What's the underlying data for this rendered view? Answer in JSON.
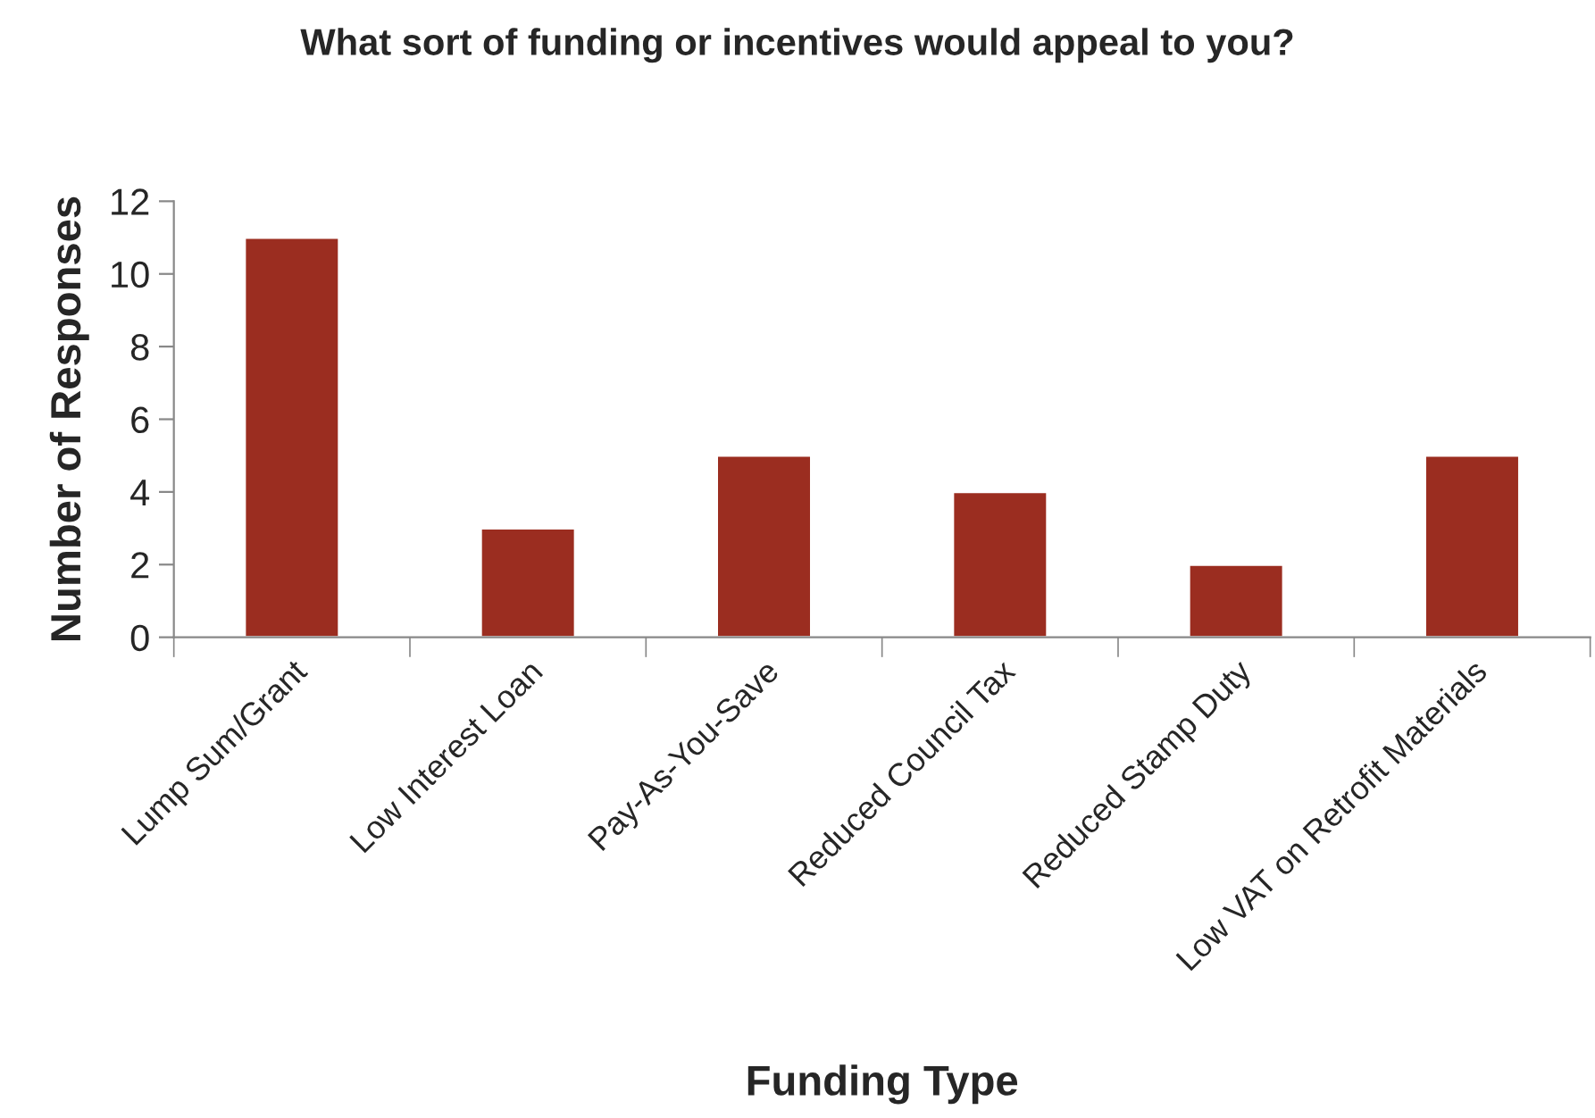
{
  "chart_data": {
    "type": "bar",
    "title": "What sort of funding or incentives would appeal to you?",
    "xlabel": "Funding Type",
    "ylabel": "Number of Responses",
    "categories": [
      "Lump Sum/Grant",
      "Low Interest Loan",
      "Pay-As-You-Save",
      "Reduced Council Tax",
      "Reduced Stamp Duty",
      "Low VAT on Retrofit Materials"
    ],
    "values": [
      11,
      3,
      5,
      4,
      2,
      5
    ],
    "color": "#9b2d20",
    "ylim": [
      0,
      12
    ],
    "yticks": [
      0,
      2,
      4,
      6,
      8,
      10,
      12
    ],
    "grid": false,
    "legend": false
  }
}
